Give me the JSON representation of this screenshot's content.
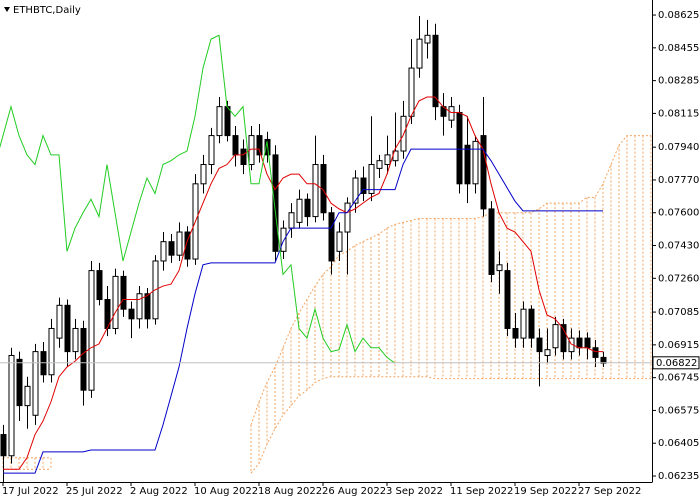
{
  "chart_data": {
    "type": "candlestick",
    "title": "ETHBTC,Daily",
    "categories": [
      "17 Jul 2022",
      null,
      null,
      null,
      null,
      null,
      null,
      null,
      "25 Jul 2022",
      null,
      null,
      null,
      null,
      null,
      null,
      null,
      "2 Aug 2022",
      null,
      null,
      null,
      null,
      null,
      null,
      null,
      "10 Aug 2022",
      null,
      null,
      null,
      null,
      null,
      null,
      null,
      "18 Aug 2022",
      null,
      null,
      null,
      null,
      null,
      null,
      null,
      "26 Aug 2022",
      null,
      null,
      null,
      null,
      null,
      null,
      null,
      "3 Sep 2022",
      null,
      null,
      null,
      null,
      null,
      null,
      null,
      "11 Sep 2022",
      null,
      null,
      null,
      null,
      null,
      null,
      null,
      "19 Sep 2022",
      null,
      null,
      null,
      null,
      null,
      null,
      null,
      "27 Sep 2022",
      null,
      null,
      null,
      null,
      null,
      null,
      null,
      null,
      null
    ],
    "open": [
      0.0645,
      0.0634,
      0.0684,
      0.066,
      0.0655,
      0.0688,
      0.0676,
      0.0695,
      0.0712,
      0.0688,
      0.07,
      0.0668,
      0.073,
      0.0715,
      0.07,
      0.0727,
      0.071,
      0.0705,
      0.0718,
      0.0705,
      0.0735,
      0.0745,
      0.0738,
      0.075,
      0.0736,
      0.0775,
      0.0785,
      0.08,
      0.0815,
      0.08,
      0.0793,
      0.0785,
      0.08,
      0.0798,
      0.079,
      0.074,
      0.0752,
      0.0755,
      0.0767,
      0.0758,
      0.0785,
      0.076,
      0.074,
      0.075,
      0.0765,
      0.0778,
      0.077,
      0.0783,
      0.0785,
      0.0787,
      0.0792,
      0.081,
      0.0835,
      0.0848,
      0.0852,
      0.0815,
      0.0808,
      0.0812,
      0.0795,
      0.0775,
      0.08,
      0.0762,
      0.073,
      0.073,
      0.07,
      0.0695,
      0.071,
      0.0695,
      0.0686,
      0.069,
      0.0702,
      0.0688,
      0.0695,
      0.0695,
      0.069,
      0.0685,
      null,
      null,
      null,
      null,
      null,
      null
    ],
    "high": [
      0.065,
      0.069,
      0.0688,
      0.0675,
      0.0692,
      0.0693,
      0.0705,
      0.0716,
      0.0715,
      0.0705,
      0.0704,
      0.0735,
      0.0734,
      0.0722,
      0.0731,
      0.073,
      0.0714,
      0.0722,
      0.0721,
      0.0738,
      0.075,
      0.0749,
      0.0755,
      0.0753,
      0.078,
      0.079,
      0.0804,
      0.082,
      0.0818,
      0.0805,
      0.0798,
      0.0805,
      0.0806,
      0.0802,
      0.0795,
      0.0756,
      0.0765,
      0.0772,
      0.077,
      0.08,
      0.079,
      0.0763,
      0.0755,
      0.0768,
      0.0782,
      0.0784,
      0.081,
      0.079,
      0.08,
      0.0812,
      0.0818,
      0.085,
      0.0862,
      0.086,
      0.0858,
      0.0822,
      0.082,
      0.0816,
      0.081,
      0.08,
      0.082,
      0.0766,
      0.074,
      0.0734,
      0.0708,
      0.0714,
      0.0712,
      0.07,
      0.07,
      0.0706,
      0.0705,
      0.07,
      0.0699,
      0.0698,
      0.0694,
      0.0688,
      null,
      null,
      null,
      null,
      null,
      null
    ],
    "low": [
      0.062,
      0.063,
      0.0652,
      0.0648,
      0.065,
      0.0672,
      0.0672,
      0.069,
      0.068,
      0.0684,
      0.066,
      0.0664,
      0.0712,
      0.0696,
      0.0697,
      0.0706,
      0.0695,
      0.07,
      0.07,
      0.0702,
      0.073,
      0.0734,
      0.0735,
      0.0732,
      0.0733,
      0.077,
      0.078,
      0.0796,
      0.0797,
      0.0784,
      0.078,
      0.0782,
      0.0786,
      0.0786,
      0.0735,
      0.0736,
      0.0747,
      0.0752,
      0.0753,
      0.0755,
      0.0756,
      0.0728,
      0.0735,
      0.0728,
      0.076,
      0.0766,
      0.0766,
      0.0778,
      0.078,
      0.0784,
      0.0788,
      0.0806,
      0.083,
      0.084,
      0.0808,
      0.08,
      0.0804,
      0.077,
      0.0765,
      0.077,
      0.0758,
      0.0724,
      0.0718,
      0.0696,
      0.069,
      0.069,
      0.069,
      0.067,
      0.0682,
      0.0686,
      0.0684,
      0.0684,
      0.0686,
      0.0684,
      0.068,
      0.068,
      null,
      null,
      null,
      null,
      null,
      null
    ],
    "close": [
      0.0634,
      0.0686,
      0.066,
      0.067,
      0.0688,
      0.0676,
      0.07,
      0.0712,
      0.0688,
      0.07,
      0.0668,
      0.073,
      0.0715,
      0.07,
      0.0727,
      0.071,
      0.0705,
      0.0718,
      0.0705,
      0.0735,
      0.0745,
      0.0738,
      0.075,
      0.0736,
      0.0775,
      0.0785,
      0.08,
      0.0815,
      0.08,
      0.079,
      0.0785,
      0.08,
      0.079,
      0.079,
      0.074,
      0.0752,
      0.076,
      0.0767,
      0.0758,
      0.0785,
      0.076,
      0.0735,
      0.075,
      0.0765,
      0.0778,
      0.077,
      0.0785,
      0.0787,
      0.079,
      0.0792,
      0.081,
      0.0835,
      0.085,
      0.0852,
      0.0815,
      0.081,
      0.0815,
      0.0775,
      0.0775,
      0.0797,
      0.0762,
      0.0728,
      0.0733,
      0.07,
      0.0695,
      0.071,
      0.0695,
      0.0688,
      0.0689,
      0.0702,
      0.0688,
      0.0695,
      0.069,
      0.069,
      0.0685,
      0.0682,
      null,
      null,
      null,
      null,
      null,
      null
    ],
    "bull_color": "#ffffff",
    "bear_color": "#000000",
    "wick_color": "#000000",
    "tenkan": {
      "color": "#e00000",
      "values": [
        0.0627,
        0.0627,
        0.0627,
        0.0633,
        0.0645,
        0.0652,
        0.0662,
        0.0675,
        0.068,
        0.0683,
        0.0687,
        0.069,
        0.0692,
        0.07,
        0.0708,
        0.0715,
        0.0715,
        0.0715,
        0.0717,
        0.072,
        0.0722,
        0.0723,
        0.073,
        0.0745,
        0.0755,
        0.0765,
        0.0775,
        0.0783,
        0.0785,
        0.079,
        0.079,
        0.0793,
        0.0793,
        0.078,
        0.0772,
        0.0778,
        0.078,
        0.078,
        0.0775,
        0.0775,
        0.0772,
        0.0765,
        0.0762,
        0.076,
        0.0762,
        0.0765,
        0.0768,
        0.077,
        0.078,
        0.0793,
        0.08,
        0.081,
        0.0818,
        0.082,
        0.082,
        0.0815,
        0.0812,
        0.0812,
        0.081,
        0.08,
        0.0793,
        0.0775,
        0.076,
        0.0752,
        0.075,
        0.0745,
        0.074,
        0.072,
        0.0707,
        0.0705,
        0.07,
        0.0692,
        0.069,
        0.069,
        0.0688,
        0.0688,
        null,
        null,
        null,
        null,
        null,
        null
      ]
    },
    "kijun": {
      "color": "#0000c8",
      "values": [
        0.0625,
        0.0625,
        0.0625,
        0.0625,
        0.0625,
        0.0636,
        0.0636,
        0.0636,
        0.0636,
        0.0636,
        0.0636,
        0.0637,
        0.0637,
        0.0637,
        0.0637,
        0.0637,
        0.0637,
        0.0637,
        0.0637,
        0.0637,
        0.065,
        0.0665,
        0.068,
        0.07,
        0.0718,
        0.0733,
        0.0734,
        0.0734,
        0.0734,
        0.0734,
        0.0734,
        0.0734,
        0.0734,
        0.0734,
        0.0734,
        0.0745,
        0.0752,
        0.0752,
        0.0752,
        0.0752,
        0.0752,
        0.0752,
        0.076,
        0.076,
        0.0766,
        0.0772,
        0.0772,
        0.0772,
        0.0772,
        0.0772,
        0.0785,
        0.0793,
        0.0793,
        0.0793,
        0.0793,
        0.0793,
        0.0793,
        0.0793,
        0.0793,
        0.0793,
        0.0793,
        0.0787,
        0.078,
        0.0773,
        0.0766,
        0.0761,
        0.0761,
        0.0761,
        0.0761,
        0.0761,
        0.0761,
        0.0761,
        0.0761,
        0.0761,
        0.0761,
        0.0761,
        null,
        null,
        null,
        null,
        null,
        null
      ]
    },
    "chikou": {
      "color": "#22cc22",
      "shift": 26
    },
    "span_a": {
      "color": "#f4a460",
      "values": [
        0.0633,
        0.0633,
        0.0633,
        0.0633,
        0.0633,
        0.0633,
        0.0633,
        null,
        null,
        null,
        null,
        null,
        null,
        null,
        null,
        null,
        null,
        null,
        null,
        null,
        null,
        null,
        null,
        null,
        null,
        null,
        null,
        null,
        null,
        null,
        null,
        0.065,
        0.0662,
        0.0672,
        0.068,
        0.069,
        0.07,
        0.0708,
        0.0715,
        0.0722,
        0.0728,
        0.0732,
        0.0738,
        0.074,
        0.0743,
        0.0745,
        0.0747,
        0.0749,
        0.0752,
        0.0754,
        0.0755,
        0.0756,
        0.0757,
        0.0757,
        0.0757,
        0.0757,
        0.0757,
        0.0757,
        0.0757,
        0.0757,
        0.0758,
        0.076,
        0.076,
        0.076,
        0.076,
        0.076,
        0.076,
        0.0762,
        0.0765,
        0.0765,
        0.0765,
        0.0765,
        0.0765,
        0.0768,
        0.0768,
        0.0775,
        0.0785,
        0.0795,
        0.08,
        0.08,
        0.08,
        0.08
      ]
    },
    "span_b": {
      "color": "#f4a460",
      "values": [
        0.0627,
        0.0627,
        0.0627,
        0.0627,
        0.0627,
        0.0627,
        0.0627,
        null,
        null,
        null,
        null,
        null,
        null,
        null,
        null,
        null,
        null,
        null,
        null,
        null,
        null,
        null,
        null,
        null,
        null,
        null,
        null,
        null,
        null,
        null,
        null,
        0.0625,
        0.063,
        0.064,
        0.0648,
        0.0655,
        0.066,
        0.0665,
        0.0668,
        0.0672,
        0.0674,
        0.0675,
        0.0675,
        0.0675,
        0.0675,
        0.0675,
        0.0675,
        0.0675,
        0.0675,
        0.0675,
        0.0675,
        0.0675,
        0.0675,
        0.0675,
        0.0674,
        0.0674,
        0.0674,
        0.0674,
        0.0674,
        0.0674,
        0.0674,
        0.0674,
        0.0674,
        0.0674,
        0.0674,
        0.0674,
        0.0674,
        0.0674,
        0.0674,
        0.0674,
        0.0674,
        0.0674,
        0.0674,
        0.0674,
        0.0674,
        0.0674,
        0.0674,
        0.0674,
        0.0674,
        0.0674,
        0.0674,
        0.0674
      ]
    },
    "last_price": 0.06822,
    "ylim": [
      0.06204,
      0.08703
    ],
    "yticks": [
      0.08625,
      0.08455,
      0.08285,
      0.08115,
      {
        "value": 0.0794,
        "label": "0.07940"
      },
      {
        "value": 0.0777,
        "label": "0.07770"
      },
      {
        "value": 0.076,
        "label": "0.07600"
      },
      {
        "value": 0.0743,
        "label": "0.07430"
      },
      {
        "value": 0.0726,
        "label": "0.07260"
      },
      0.07085,
      0.06915,
      0.06745,
      0.06575,
      0.06405,
      0.06235
    ],
    "grid": false
  }
}
